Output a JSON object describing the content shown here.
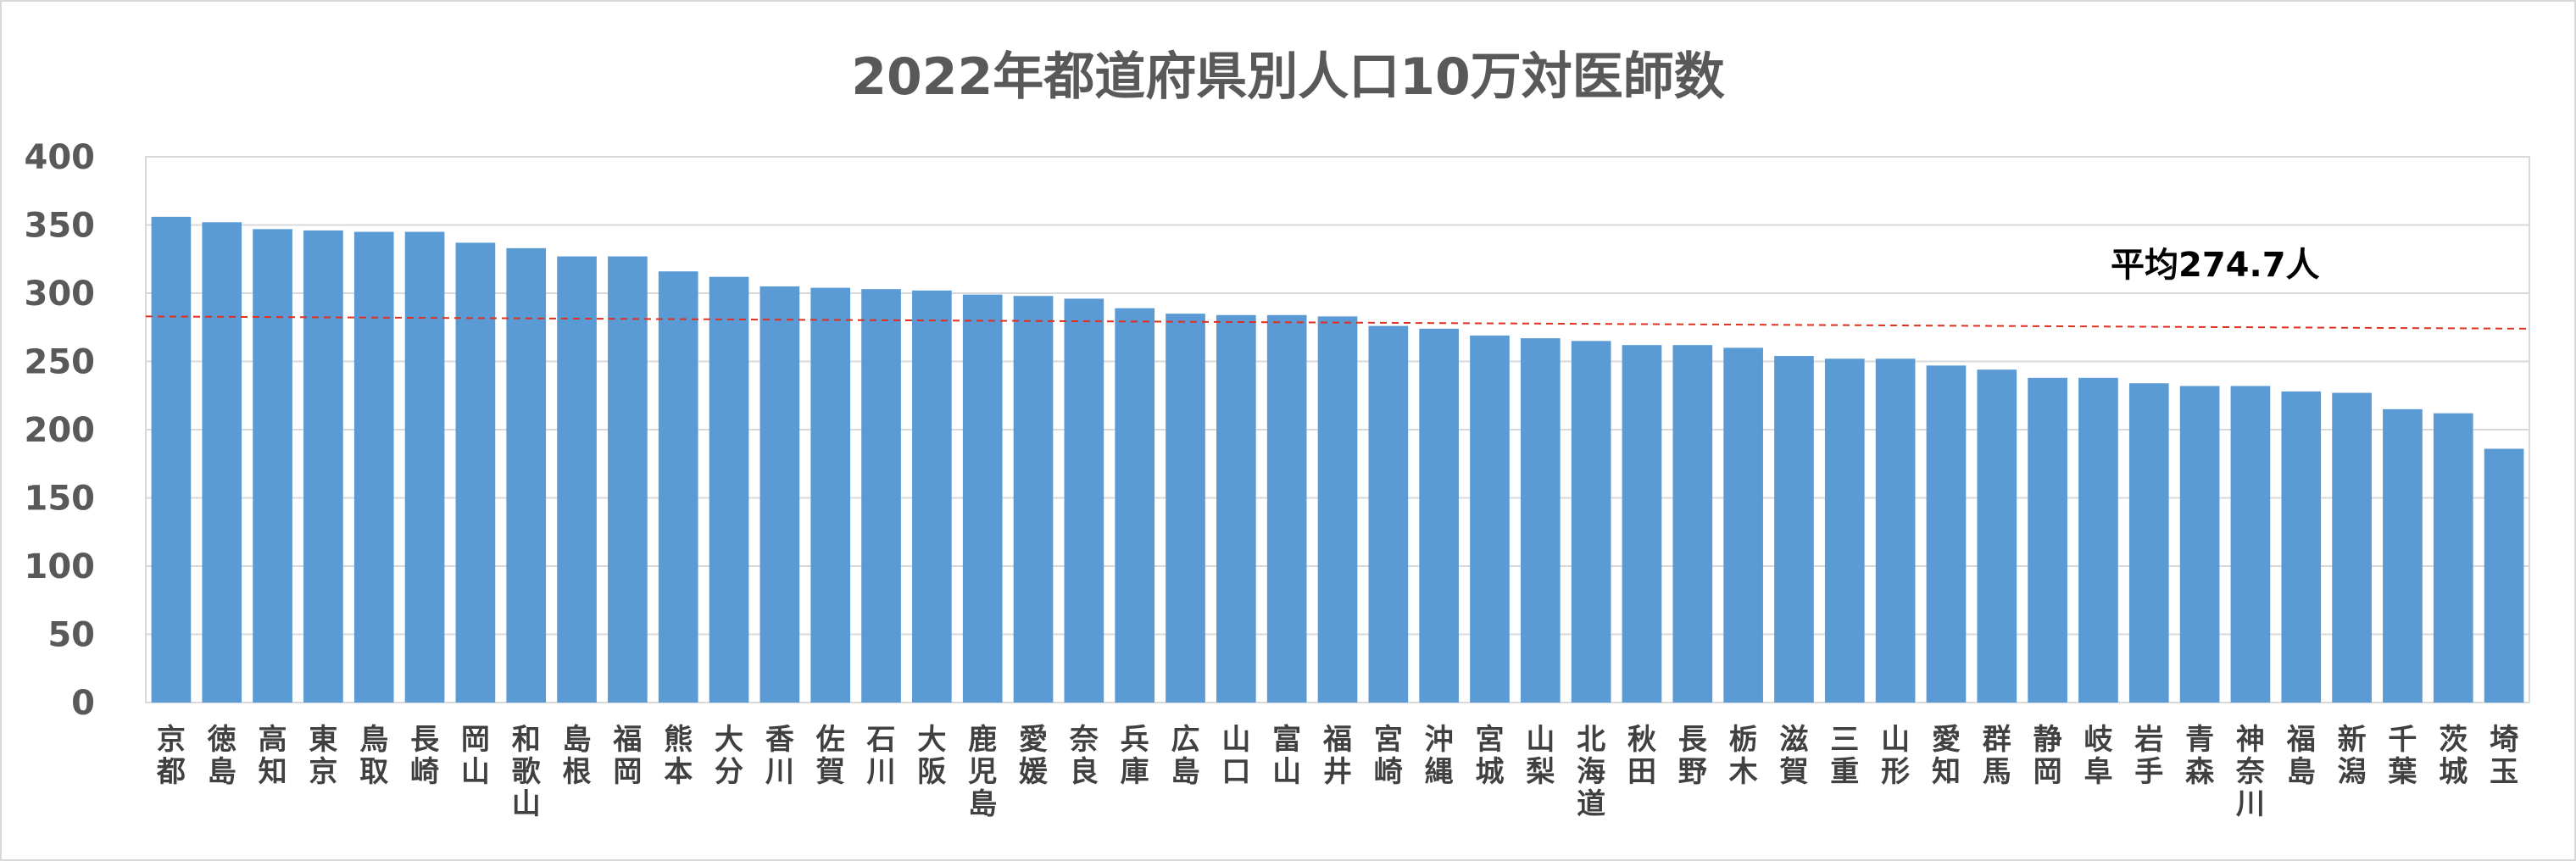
{
  "chart_data": {
    "type": "bar",
    "title": "2022年都道府県別人口10万対医師数",
    "xlabel": "",
    "ylabel": "",
    "ylim": [
      0,
      400
    ],
    "yticks": [
      0,
      50,
      100,
      150,
      200,
      250,
      300,
      350,
      400
    ],
    "grid": true,
    "bar_color": "#5b9bd5",
    "average": {
      "label": "平均274.7人",
      "line_start": 283,
      "line_end": 274,
      "color": "#e0301e",
      "style": "dashed"
    },
    "categories": [
      "京都",
      "徳島",
      "高知",
      "東京",
      "鳥取",
      "長崎",
      "岡山",
      "和歌山",
      "島根",
      "福岡",
      "熊本",
      "大分",
      "香川",
      "佐賀",
      "石川",
      "大阪",
      "鹿児島",
      "愛媛",
      "奈良",
      "兵庫",
      "広島",
      "山口",
      "富山",
      "福井",
      "宮崎",
      "沖縄",
      "宮城",
      "山梨",
      "北海道",
      "秋田",
      "長野",
      "栃木",
      "滋賀",
      "三重",
      "山形",
      "愛知",
      "群馬",
      "静岡",
      "岐阜",
      "岩手",
      "青森",
      "神奈川",
      "福島",
      "新潟",
      "千葉",
      "茨城",
      "埼玉"
    ],
    "values": [
      356,
      352,
      347,
      346,
      345,
      345,
      337,
      333,
      327,
      327,
      316,
      312,
      305,
      304,
      303,
      302,
      299,
      298,
      296,
      289,
      285,
      284,
      284,
      283,
      276,
      274,
      269,
      267,
      265,
      262,
      262,
      260,
      254,
      252,
      252,
      247,
      244,
      238,
      238,
      234,
      232,
      232,
      228,
      227,
      215,
      212,
      186
    ]
  }
}
